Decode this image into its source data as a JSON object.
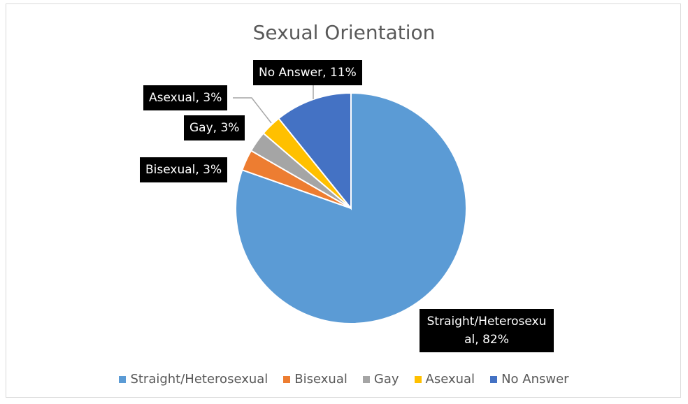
{
  "chart_data": {
    "type": "pie",
    "title": "Sexual Orientation",
    "categories": [
      "Straight/Heterosexual",
      "Bisexual",
      "Gay",
      "Asexual",
      "No Answer"
    ],
    "values": [
      82,
      3,
      3,
      3,
      11
    ],
    "value_labels": [
      "Straight/Heterosexual, 82%",
      "Bisexual, 3%",
      "Gay, 3%",
      "Asexual, 3%",
      "No Answer, 11%"
    ],
    "colors": [
      "#5b9bd5",
      "#ed7d31",
      "#a5a5a5",
      "#ffc000",
      "#4472c4"
    ],
    "legend": "bottom"
  }
}
